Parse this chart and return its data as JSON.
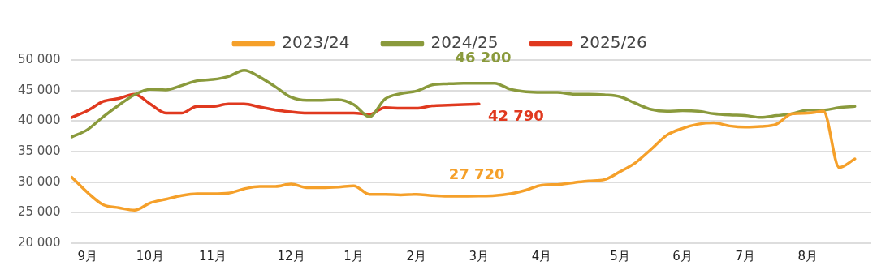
{
  "chart_data": {
    "type": "line",
    "legend": "top",
    "grid": "y",
    "marker": "none",
    "line_style": "solid",
    "categories": [
      null,
      "9月",
      null,
      null,
      null,
      "10月",
      null,
      null,
      null,
      "11月",
      null,
      null,
      null,
      null,
      "12月",
      null,
      null,
      null,
      "1月",
      null,
      null,
      null,
      "2月",
      null,
      null,
      null,
      "3月",
      null,
      null,
      null,
      "4月",
      null,
      null,
      null,
      null,
      "5月",
      null,
      null,
      null,
      "6月",
      null,
      null,
      null,
      "7月",
      null,
      null,
      null,
      "8月",
      null,
      null,
      null,
      null
    ],
    "ylim": [
      20000,
      50000
    ],
    "yticks": [
      {
        "value": 20000,
        "label": "20 000"
      },
      {
        "value": 25000,
        "label": "25 000"
      },
      {
        "value": 30000,
        "label": "30 000"
      },
      {
        "value": 35000,
        "label": "35 000"
      },
      {
        "value": 40000,
        "label": "40 000"
      },
      {
        "value": 45000,
        "label": "45 000"
      },
      {
        "value": 50000,
        "label": "50 000"
      }
    ],
    "series": [
      {
        "name": "2023/24",
        "color": "#f5a02a",
        "values": [
          30800,
          28300,
          26300,
          25800,
          25400,
          26600,
          27200,
          27800,
          28100,
          28100,
          28200,
          28900,
          29300,
          29300,
          29700,
          29100,
          29100,
          29200,
          29400,
          28000,
          28000,
          27900,
          28000,
          27800,
          27700,
          27700,
          27720,
          27800,
          28100,
          28700,
          29500,
          29600,
          29900,
          30200,
          30400,
          31700,
          33200,
          35400,
          37700,
          38800,
          39500,
          39700,
          39200,
          39000,
          39100,
          39500,
          41200,
          41300,
          41600,
          32400,
          33800,
          null
        ]
      },
      {
        "name": "2024/25",
        "color": "#8a9a3c",
        "values": [
          37400,
          38600,
          40700,
          42600,
          44300,
          45200,
          45100,
          45800,
          46600,
          46800,
          47300,
          48300,
          47200,
          45600,
          43900,
          43400,
          43400,
          43500,
          42700,
          40700,
          43600,
          44500,
          44900,
          45900,
          46100,
          46200,
          46200,
          46200,
          45200,
          44800,
          44700,
          44700,
          44400,
          44400,
          44300,
          44000,
          42900,
          41900,
          41600,
          41700,
          41600,
          41200,
          41000,
          40900,
          40600,
          40900,
          41200,
          41800,
          41800,
          42200,
          42400,
          null
        ]
      },
      {
        "name": "2025/26",
        "color": "#e0391f",
        "values": [
          40600,
          41700,
          43200,
          43700,
          44400,
          42800,
          41300,
          41300,
          42400,
          42400,
          42800,
          42800,
          42300,
          41800,
          41500,
          41300,
          41300,
          41300,
          41300,
          41100,
          42200,
          42100,
          42100,
          42500,
          42600,
          42700,
          42790,
          null,
          null,
          null,
          null,
          null,
          null,
          null,
          null,
          null,
          null,
          null,
          null,
          null,
          null,
          null,
          null,
          null,
          null,
          null,
          null,
          null,
          null,
          null,
          null,
          null
        ]
      }
    ],
    "annotations": [
      "27 720",
      "46 200",
      "42 790"
    ]
  }
}
